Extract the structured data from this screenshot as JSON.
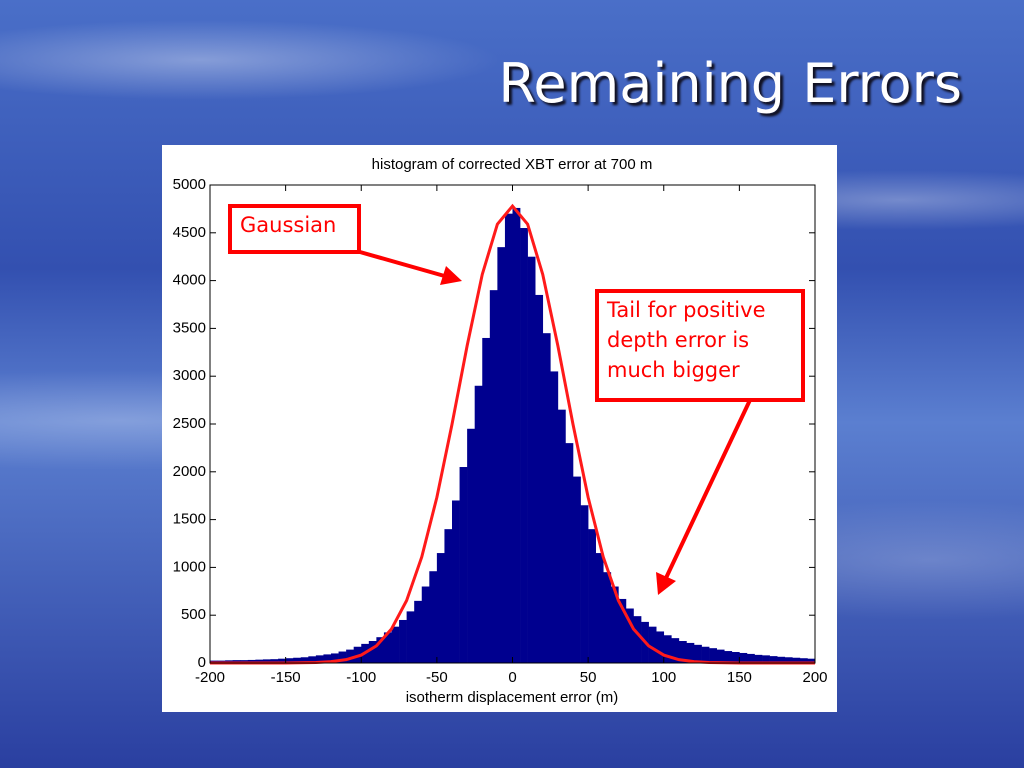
{
  "slide_title": "Remaining Errors",
  "chart_data": {
    "type": "histogram",
    "title": "histogram of corrected XBT error at 700 m",
    "x_label": "isotherm displacement error (m)",
    "bins": [
      -200,
      -195,
      -190,
      -185,
      -180,
      -175,
      -170,
      -165,
      -160,
      -155,
      -150,
      -145,
      -140,
      -135,
      -130,
      -125,
      -120,
      -115,
      -110,
      -105,
      -100,
      -95,
      -90,
      -85,
      -80,
      -75,
      -70,
      -65,
      -60,
      -55,
      -50,
      -45,
      -40,
      -35,
      -30,
      -25,
      -20,
      -15,
      -10,
      -5,
      0,
      5,
      10,
      15,
      20,
      25,
      30,
      35,
      40,
      45,
      50,
      55,
      60,
      65,
      70,
      75,
      80,
      85,
      90,
      95,
      100,
      105,
      110,
      115,
      120,
      125,
      130,
      135,
      140,
      145,
      150,
      155,
      160,
      165,
      170,
      175,
      180,
      185,
      190,
      195,
      200
    ],
    "counts": [
      25,
      25,
      28,
      30,
      30,
      32,
      35,
      38,
      40,
      45,
      50,
      55,
      60,
      70,
      80,
      90,
      100,
      120,
      140,
      170,
      200,
      230,
      270,
      320,
      380,
      450,
      540,
      650,
      800,
      960,
      1150,
      1400,
      1700,
      2050,
      2450,
      2900,
      3400,
      3900,
      4350,
      4700,
      4760,
      4550,
      4250,
      3850,
      3450,
      3050,
      2650,
      2300,
      1950,
      1650,
      1400,
      1150,
      950,
      800,
      670,
      570,
      490,
      430,
      380,
      330,
      290,
      260,
      230,
      210,
      190,
      170,
      155,
      140,
      125,
      115,
      105,
      95,
      85,
      80,
      72,
      65,
      60,
      55,
      50,
      45
    ],
    "color": "#00008f",
    "fit": {
      "x": [
        -200,
        -190,
        -180,
        -170,
        -160,
        -150,
        -140,
        -130,
        -120,
        -110,
        -100,
        -90,
        -80,
        -70,
        -60,
        -50,
        -40,
        -30,
        -20,
        -10,
        0,
        10,
        20,
        30,
        40,
        50,
        60,
        70,
        80,
        90,
        100,
        110,
        120,
        130,
        140,
        150,
        160,
        170,
        180,
        190,
        200
      ],
      "values": [
        0,
        0,
        0,
        0,
        0,
        0,
        2,
        5,
        14,
        35,
        83,
        179,
        356,
        654,
        1109,
        1733,
        2497,
        3318,
        4064,
        4590,
        4780,
        4590,
        4064,
        3318,
        2497,
        1733,
        1109,
        654,
        356,
        179,
        83,
        35,
        14,
        5,
        2,
        0,
        0,
        0,
        0,
        0,
        0
      ],
      "color": "#ff1a1a"
    },
    "xlim": [
      -200,
      200
    ],
    "xticks": [
      -200,
      -150,
      -100,
      -50,
      0,
      50,
      100,
      150,
      200
    ],
    "ylim": [
      0,
      5000
    ],
    "yticks": [
      0,
      500,
      1000,
      1500,
      2000,
      2500,
      3000,
      3500,
      4000,
      4500,
      5000
    ],
    "grid": false,
    "annotations": [
      {
        "text": "Gaussian"
      },
      {
        "text": "Tail for positive depth error is much bigger"
      }
    ]
  }
}
